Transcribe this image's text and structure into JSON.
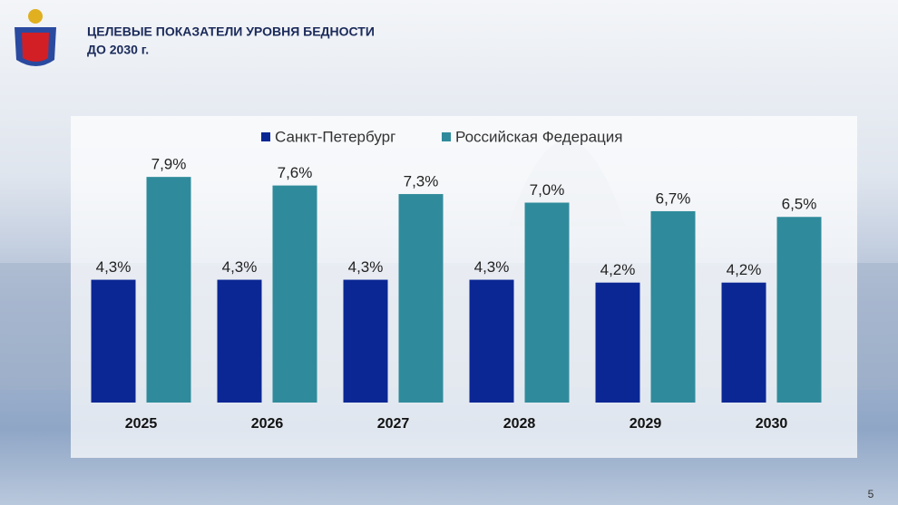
{
  "chart_data": {
    "type": "bar",
    "title": "ЦЕЛЕВЫЕ ПОКАЗАТЕЛИ УРОВНЯ БЕДНОСТИ",
    "subtitle": "ДО 2030 г.",
    "categories": [
      "2025",
      "2026",
      "2027",
      "2028",
      "2029",
      "2030"
    ],
    "series": [
      {
        "name": "Санкт-Петербург",
        "color": "#0b2794",
        "values": [
          4.3,
          4.3,
          4.3,
          4.3,
          4.2,
          4.2
        ],
        "value_labels": [
          "4,3%",
          "4,3%",
          "4,3%",
          "4,3%",
          "4,2%",
          "4,2%"
        ]
      },
      {
        "name": "Российская Федерация",
        "color": "#2f8b9b",
        "values": [
          7.9,
          7.6,
          7.3,
          7.0,
          6.7,
          6.5
        ],
        "value_labels": [
          "7,9%",
          "7,6%",
          "7,3%",
          "7,0%",
          "6,7%",
          "6,5%"
        ]
      }
    ],
    "ylim": [
      0,
      8
    ],
    "grid": false,
    "legend": "top"
  },
  "slide_number": 5
}
